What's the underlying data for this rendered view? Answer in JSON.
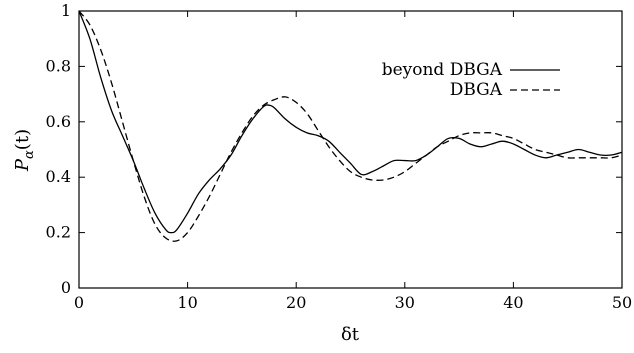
{
  "chart_data": {
    "type": "line",
    "title": "",
    "xlabel": "δt",
    "ylabel_prefix": "P",
    "ylabel_subscript": "α",
    "ylabel_suffix": "(t)",
    "xlim": [
      0,
      50
    ],
    "ylim": [
      0,
      1
    ],
    "xticks": [
      0,
      10,
      20,
      30,
      40,
      50
    ],
    "yticks": [
      0,
      0.2,
      0.4,
      0.6,
      0.8,
      1
    ],
    "xtick_labels": [
      "0",
      "10",
      "20",
      "30",
      "40",
      "50"
    ],
    "ytick_labels": [
      "0",
      "0.2",
      "0.4",
      "0.6",
      "0.8",
      "1"
    ],
    "grid": false,
    "legend_position": "top-right",
    "colors": {
      "axis": "#000000",
      "series": "#000000"
    },
    "series": [
      {
        "name": "beyond DBGA",
        "style": "solid",
        "x": [
          0,
          1,
          2,
          3,
          4,
          5,
          6,
          7,
          8,
          8.5,
          9,
          10,
          11,
          12,
          13,
          14,
          15,
          16,
          17,
          17.5,
          18,
          19,
          20,
          21,
          22,
          23,
          24,
          25,
          26,
          27,
          28,
          29,
          30,
          31,
          32,
          33,
          34,
          35,
          36,
          37,
          38,
          39,
          40,
          41,
          42,
          43,
          44,
          45,
          46,
          47,
          48,
          49,
          50
        ],
        "y": [
          1.0,
          0.9,
          0.76,
          0.64,
          0.55,
          0.46,
          0.36,
          0.27,
          0.21,
          0.2,
          0.21,
          0.27,
          0.34,
          0.39,
          0.43,
          0.48,
          0.55,
          0.61,
          0.655,
          0.66,
          0.65,
          0.61,
          0.58,
          0.56,
          0.55,
          0.53,
          0.49,
          0.45,
          0.41,
          0.42,
          0.44,
          0.46,
          0.46,
          0.46,
          0.48,
          0.51,
          0.54,
          0.54,
          0.52,
          0.51,
          0.52,
          0.53,
          0.52,
          0.5,
          0.48,
          0.47,
          0.48,
          0.49,
          0.5,
          0.49,
          0.48,
          0.48,
          0.49
        ]
      },
      {
        "name": "DBGA",
        "style": "dashed",
        "x": [
          0,
          1,
          2,
          3,
          4,
          5,
          6,
          7,
          8,
          9,
          10,
          11,
          12,
          13,
          14,
          15,
          16,
          17,
          18,
          19,
          20,
          21,
          22,
          23,
          24,
          25,
          26,
          27,
          28,
          29,
          30,
          31,
          32,
          33,
          34,
          35,
          36,
          37,
          38,
          39,
          40,
          41,
          42,
          43,
          44,
          45,
          46,
          47,
          48,
          49,
          50
        ],
        "y": [
          1.0,
          0.95,
          0.86,
          0.74,
          0.6,
          0.46,
          0.33,
          0.23,
          0.18,
          0.17,
          0.2,
          0.26,
          0.33,
          0.41,
          0.49,
          0.56,
          0.62,
          0.66,
          0.68,
          0.69,
          0.67,
          0.63,
          0.57,
          0.51,
          0.46,
          0.42,
          0.4,
          0.39,
          0.39,
          0.4,
          0.42,
          0.45,
          0.48,
          0.51,
          0.53,
          0.55,
          0.56,
          0.56,
          0.56,
          0.55,
          0.54,
          0.52,
          0.5,
          0.49,
          0.48,
          0.47,
          0.47,
          0.47,
          0.47,
          0.47,
          0.48
        ]
      }
    ]
  }
}
